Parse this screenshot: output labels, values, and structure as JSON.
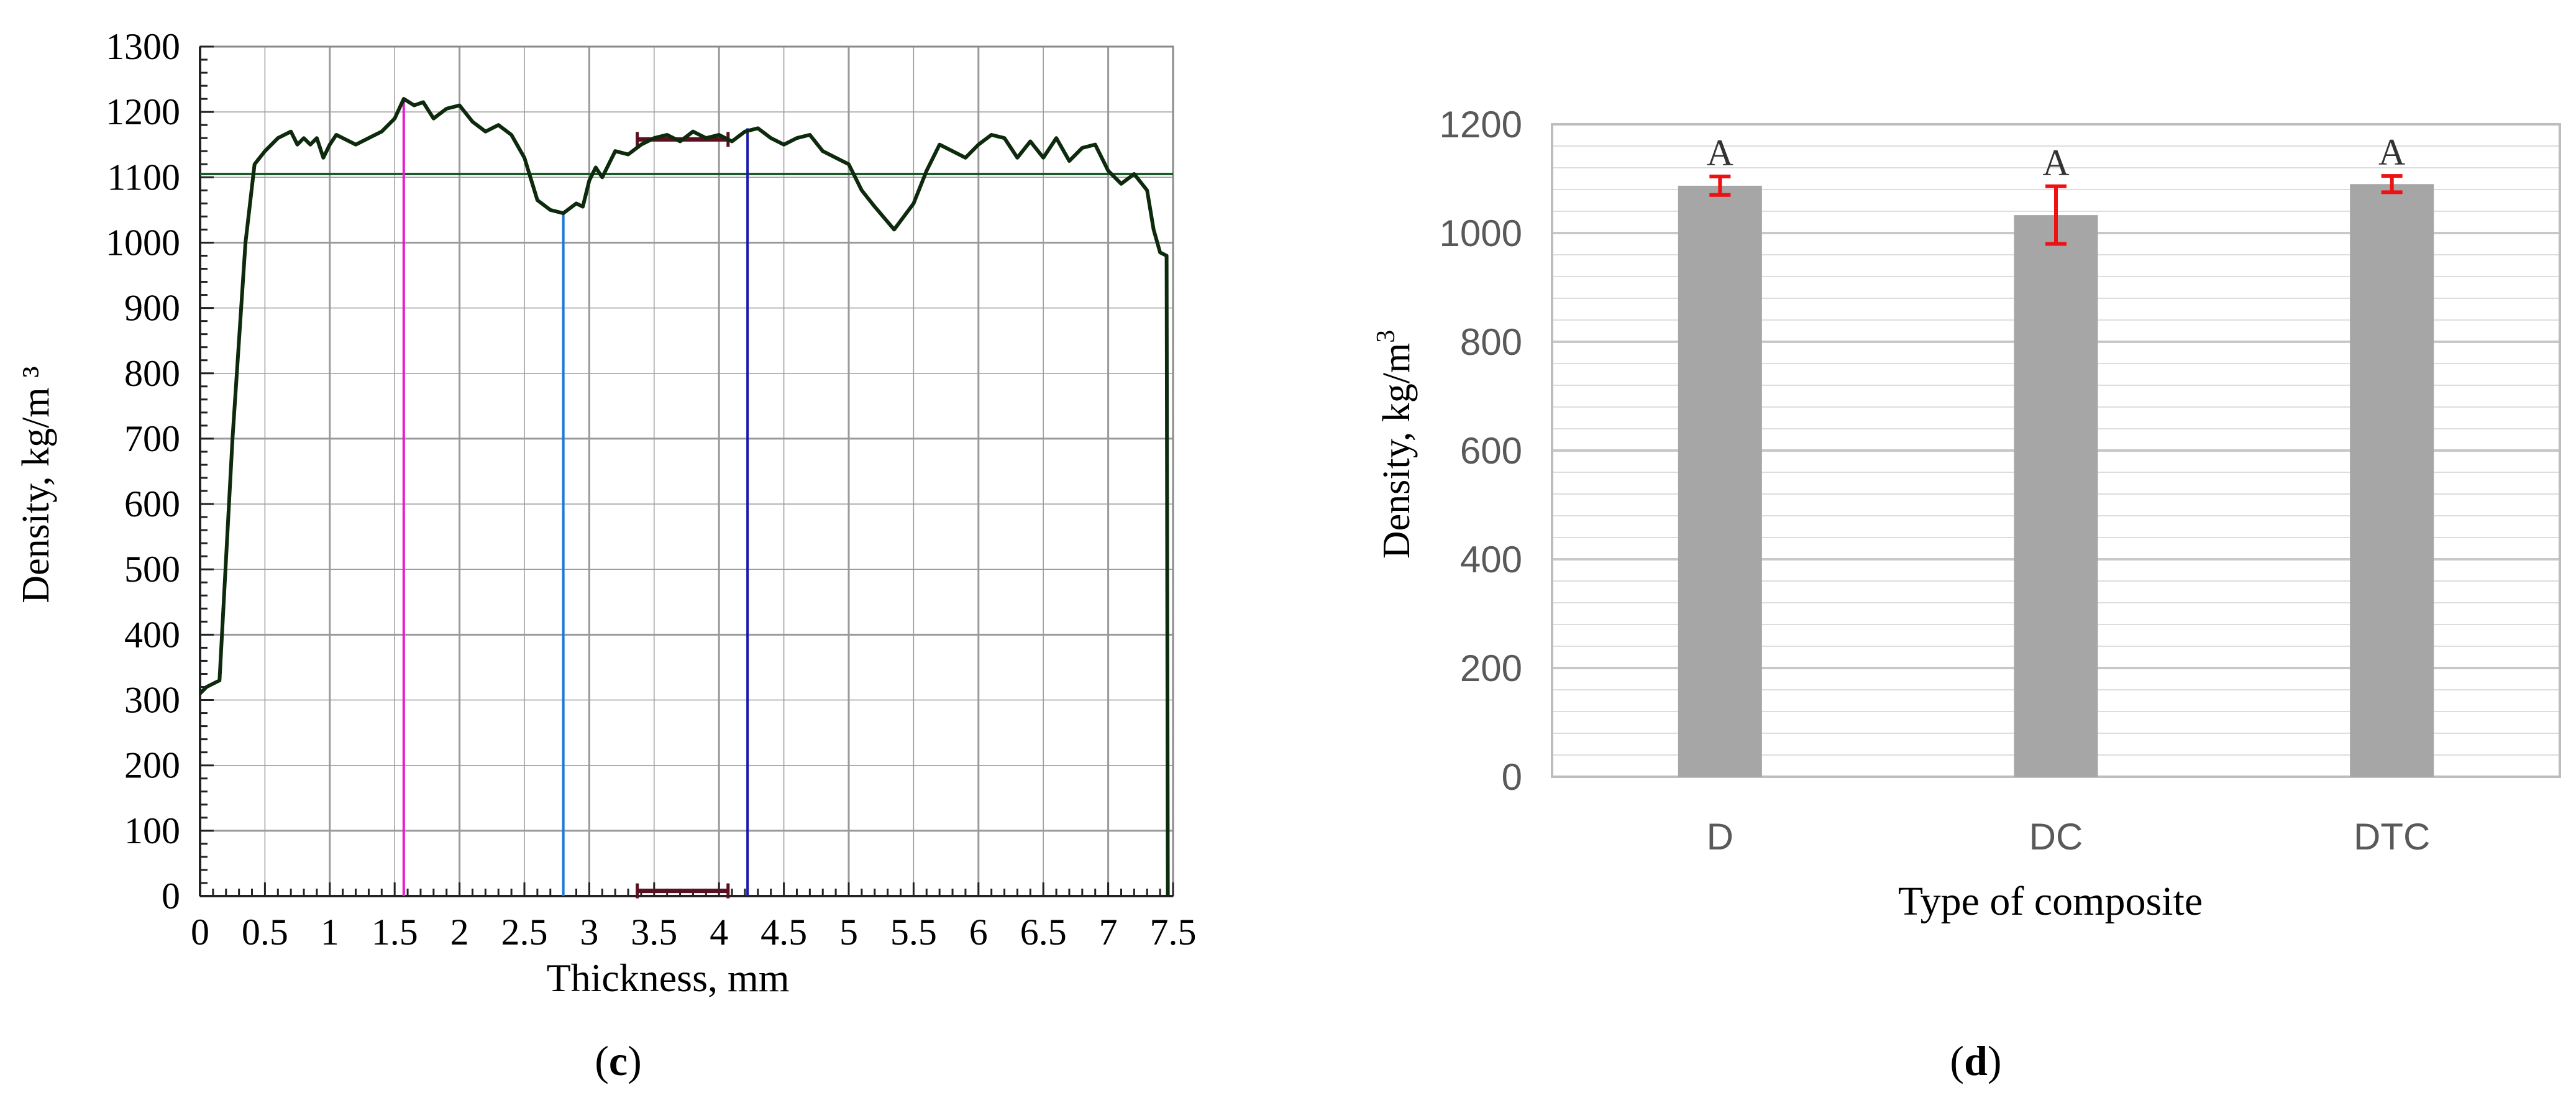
{
  "colors": {
    "profile_line": "#0d2a0d",
    "mean_line": "#1a5a2a",
    "magenta_marker": "#e020d0",
    "lightblue_marker": "#1a78d8",
    "darkblue_marker": "#1a1aa8",
    "bracket": "#5a1020",
    "bar_fill": "#a6a6a6",
    "error_bar": "#ee1111",
    "grid_major": "#9a9a9a",
    "grid_minor": "#dddddd"
  },
  "chart_data": [
    {
      "panel_label": "c",
      "type": "line",
      "xlabel": "Thickness, mm",
      "ylabel": "Density, kg/m ³",
      "xlim": [
        0,
        7.5
      ],
      "ylim": [
        0,
        1300
      ],
      "x_ticks": [
        "0",
        "0.5",
        "1",
        "1.5",
        "2",
        "2.5",
        "3",
        "3.5",
        "4",
        "4.5",
        "5",
        "5.5",
        "6",
        "6.5",
        "7",
        "7.5"
      ],
      "y_ticks": [
        "0",
        "100",
        "200",
        "300",
        "400",
        "500",
        "600",
        "700",
        "800",
        "900",
        "1000",
        "1100",
        "1200",
        "1300"
      ],
      "grid": true,
      "series": [
        {
          "x": [
            0,
            0.05,
            0.15,
            0.25,
            0.35,
            0.42,
            0.5,
            0.6,
            0.7,
            0.75,
            0.8,
            0.85,
            0.9,
            0.95,
            1.0,
            1.05,
            1.1,
            1.2,
            1.3,
            1.4,
            1.5,
            1.57,
            1.65,
            1.72,
            1.8,
            1.9,
            2.0,
            2.1,
            2.2,
            2.3,
            2.4,
            2.5,
            2.6,
            2.7,
            2.8,
            2.9,
            2.95,
            3.0,
            3.05,
            3.1,
            3.2,
            3.3,
            3.4,
            3.5,
            3.6,
            3.7,
            3.8,
            3.9,
            4.0,
            4.1,
            4.2,
            4.3,
            4.4,
            4.5,
            4.6,
            4.7,
            4.8,
            4.9,
            5.0,
            5.1,
            5.2,
            5.35,
            5.5,
            5.6,
            5.7,
            5.8,
            5.9,
            6.0,
            6.1,
            6.2,
            6.3,
            6.4,
            6.5,
            6.6,
            6.7,
            6.8,
            6.9,
            7.0,
            7.1,
            7.2,
            7.3,
            7.35,
            7.4,
            7.45,
            7.46
          ],
          "y": [
            310,
            320,
            330,
            700,
            1000,
            1120,
            1140,
            1160,
            1170,
            1150,
            1160,
            1150,
            1160,
            1130,
            1150,
            1165,
            1160,
            1150,
            1160,
            1170,
            1190,
            1220,
            1210,
            1215,
            1190,
            1205,
            1210,
            1185,
            1170,
            1180,
            1165,
            1130,
            1065,
            1050,
            1045,
            1060,
            1055,
            1095,
            1115,
            1100,
            1140,
            1135,
            1150,
            1160,
            1165,
            1155,
            1170,
            1160,
            1165,
            1155,
            1170,
            1175,
            1160,
            1150,
            1160,
            1165,
            1140,
            1130,
            1120,
            1080,
            1055,
            1020,
            1060,
            1110,
            1150,
            1140,
            1130,
            1150,
            1165,
            1160,
            1130,
            1155,
            1130,
            1160,
            1125,
            1145,
            1150,
            1110,
            1090,
            1105,
            1080,
            1020,
            985,
            980,
            0
          ]
        }
      ],
      "mean_density": 1105,
      "vertical_markers": [
        {
          "x": 1.57,
          "y_top": 1220,
          "color_key": "magenta_marker"
        },
        {
          "x": 2.8,
          "y_top": 1045,
          "color_key": "lightblue_marker"
        },
        {
          "x": 4.22,
          "y_top": 1175,
          "color_key": "darkblue_marker"
        }
      ],
      "brackets": [
        {
          "x0": 3.37,
          "x1": 4.07,
          "y": 1158
        },
        {
          "x0": 3.37,
          "x1": 4.07,
          "y": 8
        }
      ]
    },
    {
      "panel_label": "d",
      "type": "bar",
      "xlabel": "Type of composite",
      "ylabel": "Density, kg/m",
      "ylabel_superscript": "3",
      "ylim": [
        0,
        1200
      ],
      "y_ticks": [
        "0",
        "200",
        "400",
        "600",
        "800",
        "1000",
        "1200"
      ],
      "grid": true,
      "categories": [
        "D",
        "DC",
        "DTC"
      ],
      "values": [
        1087,
        1033,
        1090
      ],
      "error": [
        17,
        53,
        15
      ],
      "group_letters": [
        "A",
        "A",
        "A"
      ]
    }
  ]
}
